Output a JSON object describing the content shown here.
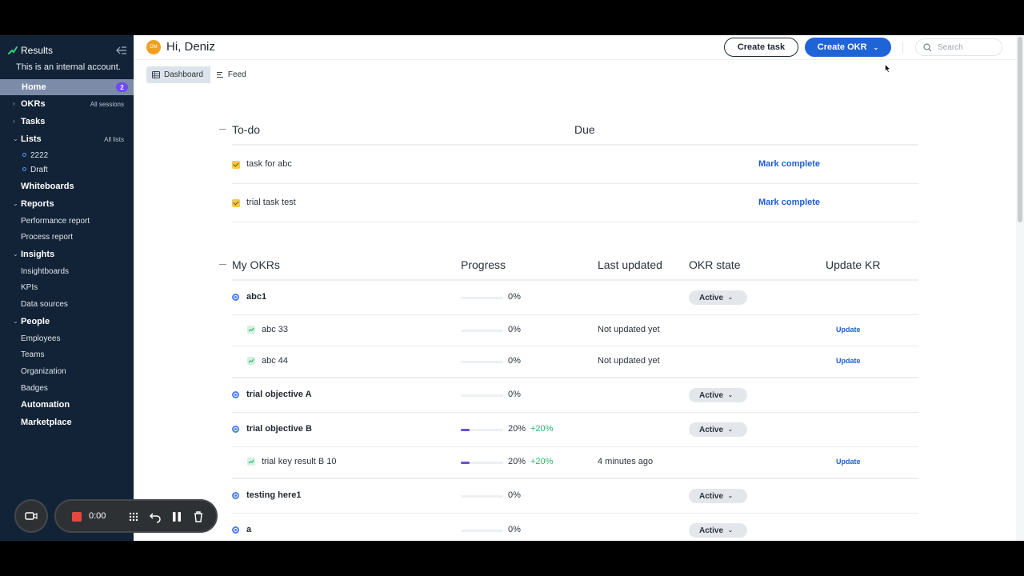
{
  "sidebar": {
    "brand": "Results",
    "account_note": "This is an internal account.",
    "home": {
      "label": "Home",
      "badge": "2"
    },
    "okrs": {
      "label": "OKRs",
      "aside": "All sessions"
    },
    "tasks": {
      "label": "Tasks"
    },
    "lists": {
      "label": "Lists",
      "aside": "All lists",
      "items": [
        "2222",
        "Draft"
      ]
    },
    "whiteboards": {
      "label": "Whiteboards"
    },
    "reports": {
      "label": "Reports",
      "items": [
        "Performance report",
        "Process report"
      ]
    },
    "insights": {
      "label": "Insights",
      "items": [
        "Insightboards",
        "KPIs",
        "Data sources"
      ]
    },
    "people": {
      "label": "People",
      "items": [
        "Employees",
        "Teams",
        "Organization",
        "Badges"
      ]
    },
    "automation": {
      "label": "Automation"
    },
    "marketplace": {
      "label": "Marketplace"
    }
  },
  "recorder": {
    "time": "0:00"
  },
  "header": {
    "avatar_initials": "DM",
    "greeting": "Hi, Deniz",
    "create_task": "Create task",
    "create_okr": "Create OKR",
    "search_placeholder": "Search"
  },
  "tabs": [
    {
      "label": "Dashboard",
      "active": true
    },
    {
      "label": "Feed",
      "active": false
    }
  ],
  "todo": {
    "title": "To-do",
    "due_header": "Due",
    "items": [
      {
        "name": "task for abc",
        "action": "Mark complete"
      },
      {
        "name": "trial task test",
        "action": "Mark complete"
      }
    ]
  },
  "okrs": {
    "title": "My OKRs",
    "columns": {
      "progress": "Progress",
      "last_updated": "Last updated",
      "state": "OKR state",
      "update": "Update KR"
    },
    "rows": [
      {
        "type": "objective",
        "name": "abc1",
        "progress": 0,
        "pct": "0%",
        "state": "Active"
      },
      {
        "type": "kr",
        "name": "abc 33",
        "progress": 0,
        "pct": "0%",
        "updated": "Not updated yet",
        "action": "Update"
      },
      {
        "type": "kr",
        "name": "abc 44",
        "progress": 0,
        "pct": "0%",
        "updated": "Not updated yet",
        "action": "Update"
      },
      {
        "type": "objective",
        "name": "trial objective A",
        "progress": 0,
        "pct": "0%",
        "state": "Active"
      },
      {
        "type": "objective",
        "name": "trial objective B",
        "progress": 0.2,
        "pct": "20%",
        "delta": "+20%",
        "state": "Active"
      },
      {
        "type": "kr",
        "name": "trial key result B 10",
        "progress": 0.2,
        "pct": "20%",
        "delta": "+20%",
        "updated": "4 minutes ago",
        "action": "Update"
      },
      {
        "type": "objective",
        "name": "testing here1",
        "progress": 0,
        "pct": "0%",
        "state": "Active"
      },
      {
        "type": "objective",
        "name": "a",
        "progress": 0,
        "pct": "0%",
        "state": "Active"
      }
    ]
  },
  "colors": {
    "sidebar_bg": "#132337",
    "accent": "#1f64d6",
    "progress": "#6a4fd6",
    "delta": "#2bb673"
  }
}
